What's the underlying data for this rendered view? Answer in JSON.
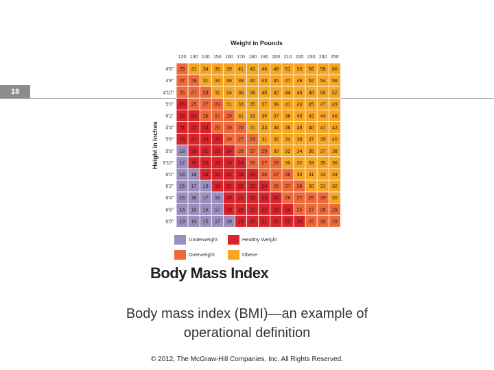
{
  "slide": {
    "number": "18",
    "caption_line1": "Body mass index (BMI)—an example of",
    "caption_line2": "operational definition",
    "copyright": "© 2012, The McGraw-Hill Companies, Inc. All Rights Reserved."
  },
  "chart_data": {
    "type": "table",
    "title": "Weight in Pounds",
    "ylabel": "Height in Inches",
    "big_title": "Body Mass Index",
    "columns": [
      "120",
      "130",
      "140",
      "150",
      "160",
      "170",
      "180",
      "190",
      "200",
      "210",
      "220",
      "230",
      "240",
      "250"
    ],
    "rows": [
      {
        "height": "4'6\"",
        "values": [
          29,
          31,
          34,
          36,
          39,
          41,
          43,
          46,
          48,
          51,
          53,
          56,
          58,
          60
        ]
      },
      {
        "height": "4'8\"",
        "values": [
          27,
          29,
          31,
          34,
          36,
          38,
          40,
          43,
          45,
          47,
          49,
          52,
          54,
          56
        ]
      },
      {
        "height": "4'10\"",
        "values": [
          25,
          27,
          29,
          31,
          34,
          36,
          38,
          40,
          42,
          44,
          46,
          48,
          50,
          52
        ]
      },
      {
        "height": "5'0\"",
        "values": [
          23,
          25,
          27,
          29,
          31,
          33,
          35,
          37,
          39,
          41,
          43,
          45,
          47,
          49
        ]
      },
      {
        "height": "5'2\"",
        "values": [
          22,
          24,
          26,
          27,
          29,
          31,
          33,
          35,
          37,
          38,
          40,
          42,
          44,
          46
        ]
      },
      {
        "height": "5'4\"",
        "values": [
          21,
          22,
          24,
          26,
          28,
          29,
          31,
          33,
          34,
          36,
          38,
          40,
          41,
          43
        ]
      },
      {
        "height": "5'6\"",
        "values": [
          19,
          21,
          23,
          24,
          26,
          27,
          29,
          31,
          32,
          34,
          36,
          37,
          39,
          40
        ]
      },
      {
        "height": "5'8\"",
        "values": [
          18,
          20,
          21,
          23,
          24,
          26,
          27,
          29,
          30,
          32,
          34,
          35,
          37,
          38
        ]
      },
      {
        "height": "5'10\"",
        "values": [
          17,
          19,
          20,
          22,
          23,
          24,
          26,
          27,
          29,
          30,
          32,
          33,
          35,
          36
        ]
      },
      {
        "height": "6'0\"",
        "values": [
          16,
          18,
          19,
          20,
          22,
          23,
          24,
          26,
          27,
          28,
          30,
          31,
          33,
          34
        ]
      },
      {
        "height": "6'2\"",
        "values": [
          15,
          17,
          18,
          19,
          21,
          22,
          23,
          24,
          26,
          27,
          28,
          30,
          31,
          32
        ]
      },
      {
        "height": "6'4\"",
        "values": [
          15,
          16,
          17,
          18,
          20,
          21,
          22,
          23,
          24,
          26,
          27,
          29,
          29,
          30
        ]
      },
      {
        "height": "6'6\"",
        "values": [
          14,
          15,
          16,
          17,
          19,
          20,
          21,
          22,
          23,
          24,
          25,
          27,
          28,
          29
        ]
      },
      {
        "height": "6'8\"",
        "values": [
          13,
          14,
          15,
          17,
          18,
          19,
          20,
          21,
          22,
          23,
          24,
          25,
          26,
          28
        ]
      }
    ],
    "categories": [
      {
        "name": "Underweight",
        "color": "#9b8ebe",
        "range": [
          0,
          18.5
        ]
      },
      {
        "name": "Healthy Weight",
        "color": "#d9242b",
        "range": [
          18.5,
          25
        ]
      },
      {
        "name": "Overweight",
        "color": "#ef6a3a",
        "range": [
          25,
          30
        ]
      },
      {
        "name": "Obese",
        "color": "#f6a623",
        "range": [
          30,
          100
        ]
      }
    ]
  }
}
